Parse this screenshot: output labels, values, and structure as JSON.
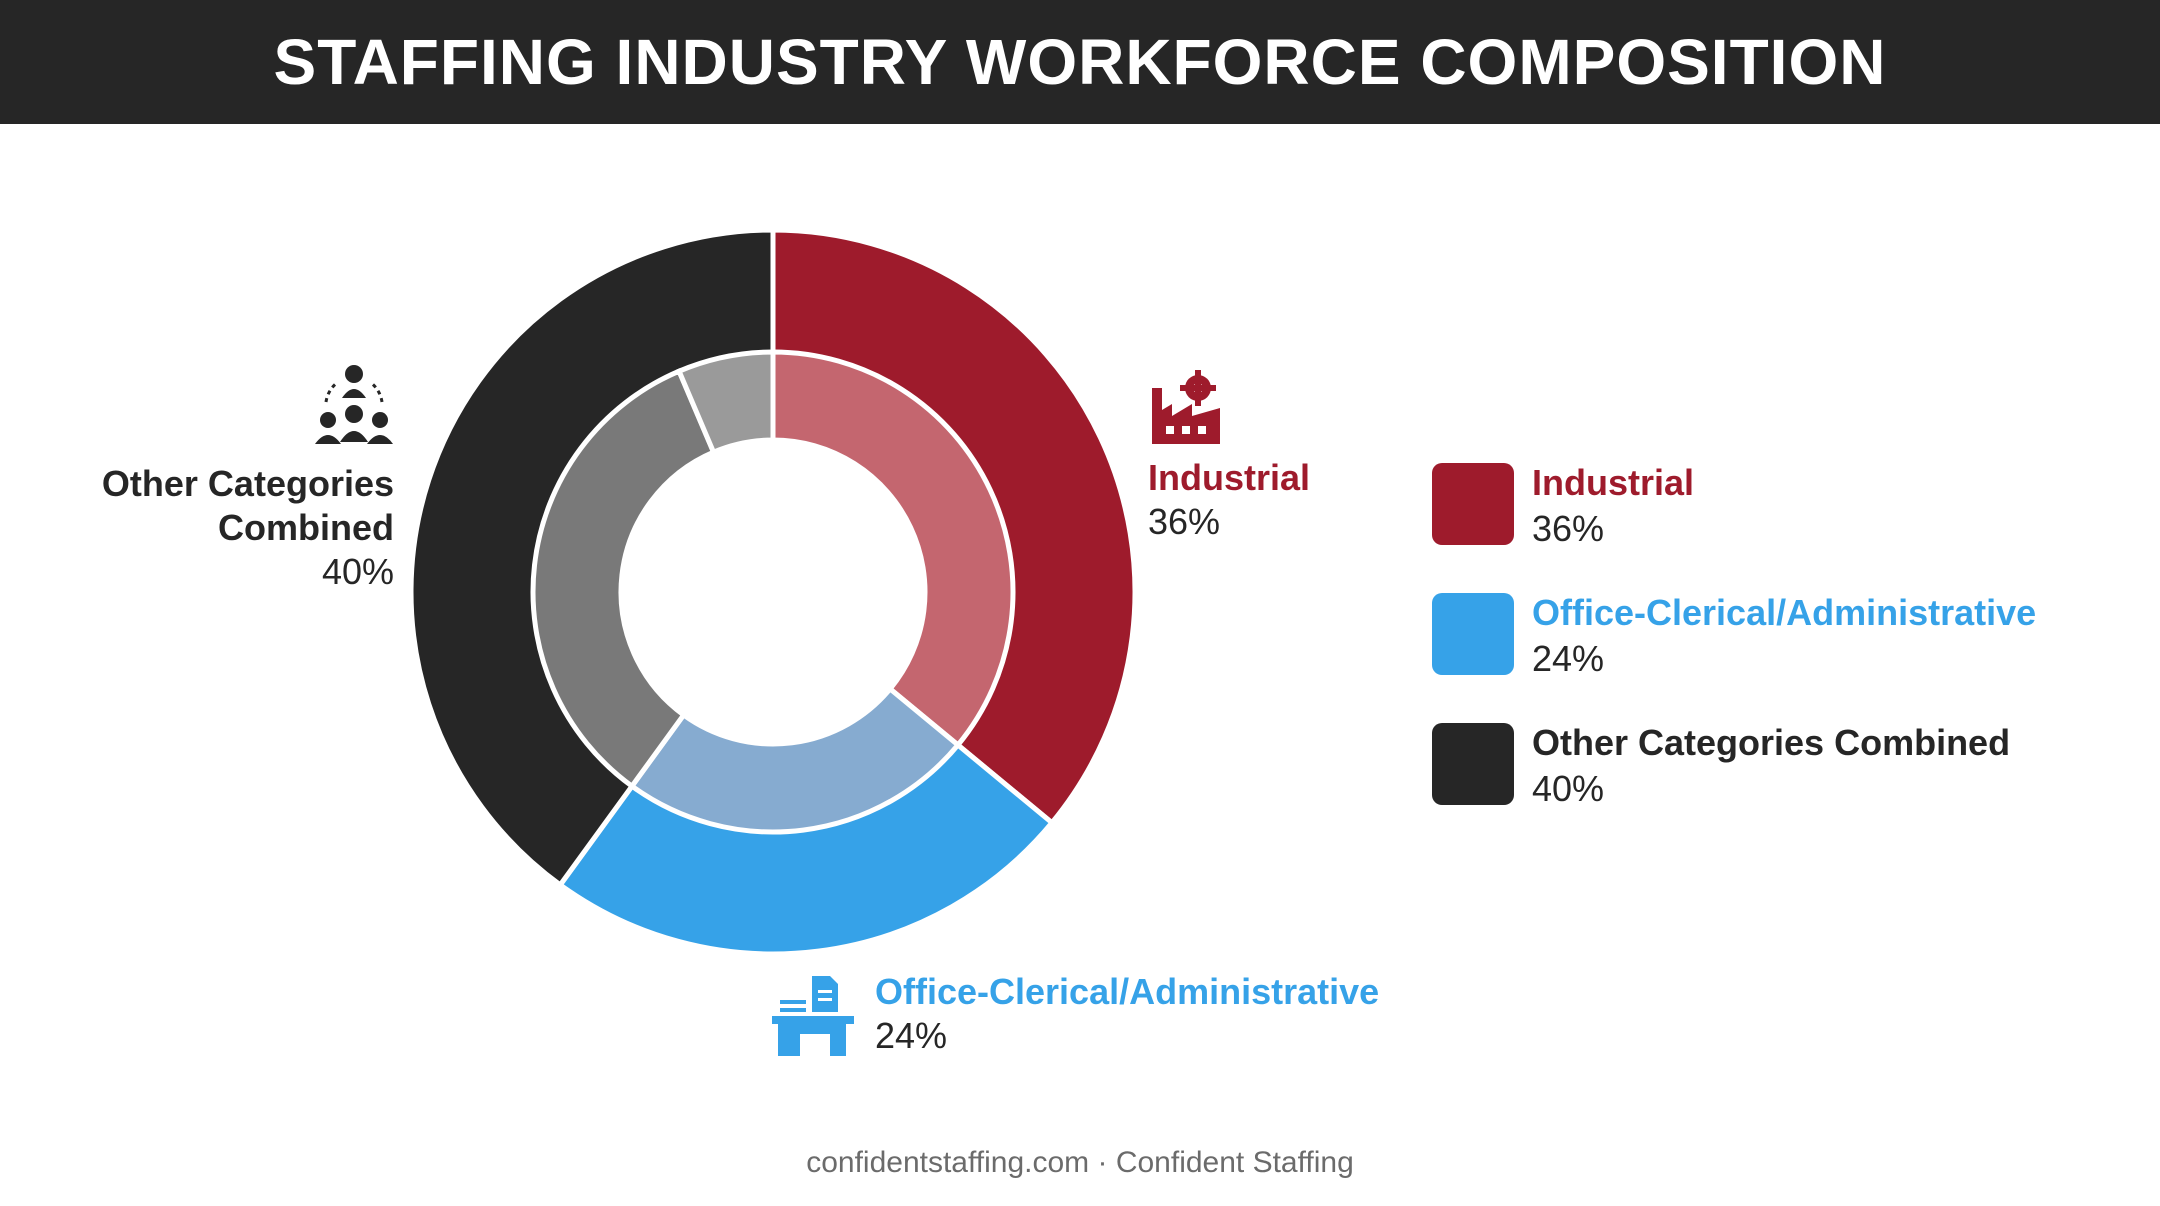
{
  "title": "STAFFING INDUSTRY WORKFORCE COMPOSITION",
  "footer": "confidentstaffing.com · Confident Staffing",
  "colors": {
    "industrial": "#9e1b2c",
    "office": "#36a2e8",
    "other": "#262626",
    "industrial_inner": "#c4666f",
    "office_inner": "#86abd0",
    "other_inner_a": "#797979",
    "other_inner_b": "#9a9a9a"
  },
  "chart_data": {
    "type": "pie",
    "title": "STAFFING INDUSTRY WORKFORCE COMPOSITION",
    "categories": [
      "Industrial",
      "Office-Clerical/Administrative",
      "Other Categories Combined"
    ],
    "values": [
      36,
      24,
      40
    ],
    "labels": [
      "36%",
      "24%",
      "40%"
    ],
    "legend_position": "right"
  },
  "callouts": {
    "industrial": {
      "name": "Industrial",
      "pct": "36%",
      "icon": "factory-icon"
    },
    "office": {
      "name": "Office-Clerical/Administrative",
      "pct": "24%",
      "icon": "office-desk-icon"
    },
    "other": {
      "name_line1": "Other Categories",
      "name_line2": "Combined",
      "pct": "40%",
      "icon": "people-group-icon"
    }
  },
  "legend": [
    {
      "name": "Industrial",
      "pct": "36%"
    },
    {
      "name": "Office-Clerical/Administrative",
      "pct": "24%"
    },
    {
      "name": "Other Categories Combined",
      "pct": "40%"
    }
  ]
}
